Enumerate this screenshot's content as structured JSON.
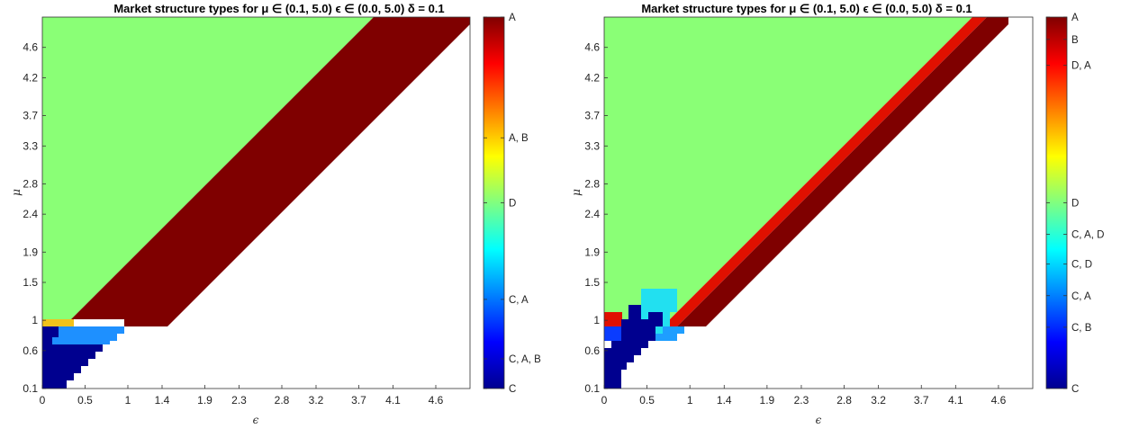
{
  "chart_data": [
    {
      "type": "heatmap",
      "title": "Market structure types for  μ ∈ (0.1, 5.0) ϵ ∈ (0.0, 5.0) δ = 0.1",
      "xlabel": "ϵ",
      "ylabel": "μ",
      "xlim": [
        0,
        5.0
      ],
      "ylim": [
        0.1,
        5.0
      ],
      "xticks": [
        "0",
        "0.5",
        "1",
        "1.4",
        "1.9",
        "2.3",
        "2.8",
        "3.2",
        "3.7",
        "4.1",
        "4.6"
      ],
      "yticks": [
        "0.1",
        "0.6",
        "1",
        "1.5",
        "1.9",
        "2.4",
        "2.8",
        "3.3",
        "3.7",
        "4.2",
        "4.6"
      ],
      "colorbar": {
        "colormap": "jet",
        "labels": [
          {
            "text": "A",
            "level": 1.0
          },
          {
            "text": "A, B",
            "level": 0.675
          },
          {
            "text": "D",
            "level": 0.5
          },
          {
            "text": "C, A",
            "level": 0.24
          },
          {
            "text": "C, A, B",
            "level": 0.08
          },
          {
            "text": "C",
            "level": 0.0
          }
        ]
      },
      "regions": [
        {
          "structure": "C",
          "color": "#00008f"
        },
        {
          "structure": "C, A",
          "color": "#1e90ff"
        },
        {
          "structure": "A, B",
          "color": "#f2c21b"
        },
        {
          "structure": "D",
          "color": "#8aff76"
        },
        {
          "structure": "A",
          "color": "#7f0000"
        }
      ],
      "boundaries": {
        "green_lower_edge": [
          [
            0,
            1.0
          ],
          [
            1.0,
            1.0
          ],
          [
            3.9,
            5.0
          ]
        ],
        "maroon_lower_edge": [
          [
            0.9,
            0.9
          ],
          [
            4.9,
            5.0
          ]
        ]
      }
    },
    {
      "type": "heatmap",
      "title": "Market structure types for  μ ∈ (0.1, 5.0) ϵ ∈ (0.0, 5.0) δ = 0.1",
      "xlabel": "ϵ",
      "ylabel": "μ",
      "xlim": [
        0,
        5.0
      ],
      "ylim": [
        0.1,
        5.0
      ],
      "xticks": [
        "0",
        "0.5",
        "1",
        "1.4",
        "1.9",
        "2.3",
        "2.8",
        "3.2",
        "3.7",
        "4.1",
        "4.6"
      ],
      "yticks": [
        "0.1",
        "0.6",
        "1",
        "1.5",
        "1.9",
        "2.4",
        "2.8",
        "3.3",
        "3.7",
        "4.2",
        "4.6"
      ],
      "colorbar": {
        "colormap": "jet",
        "labels": [
          {
            "text": "A",
            "level": 1.0
          },
          {
            "text": "B",
            "level": 0.94
          },
          {
            "text": "D, A",
            "level": 0.87
          },
          {
            "text": "D",
            "level": 0.5
          },
          {
            "text": "C, A, D",
            "level": 0.415
          },
          {
            "text": "C, D",
            "level": 0.335
          },
          {
            "text": "C, A",
            "level": 0.25
          },
          {
            "text": "C, B",
            "level": 0.165
          },
          {
            "text": "C",
            "level": 0.0
          }
        ]
      },
      "regions": [
        {
          "structure": "C",
          "color": "#00008f"
        },
        {
          "structure": "C, B",
          "color": "#0a3cff"
        },
        {
          "structure": "C, A",
          "color": "#1e9eff"
        },
        {
          "structure": "C, D",
          "color": "#22e0f0"
        },
        {
          "structure": "D",
          "color": "#8aff76"
        },
        {
          "structure": "D, A",
          "color": "#e01000"
        },
        {
          "structure": "A",
          "color": "#7f0000"
        }
      ],
      "boundaries": {
        "green_lower_edge": [
          [
            0,
            1.0
          ],
          [
            0.9,
            1.0
          ],
          [
            4.8,
            5.0
          ]
        ],
        "diagonal_band_width": 0.15
      }
    }
  ]
}
